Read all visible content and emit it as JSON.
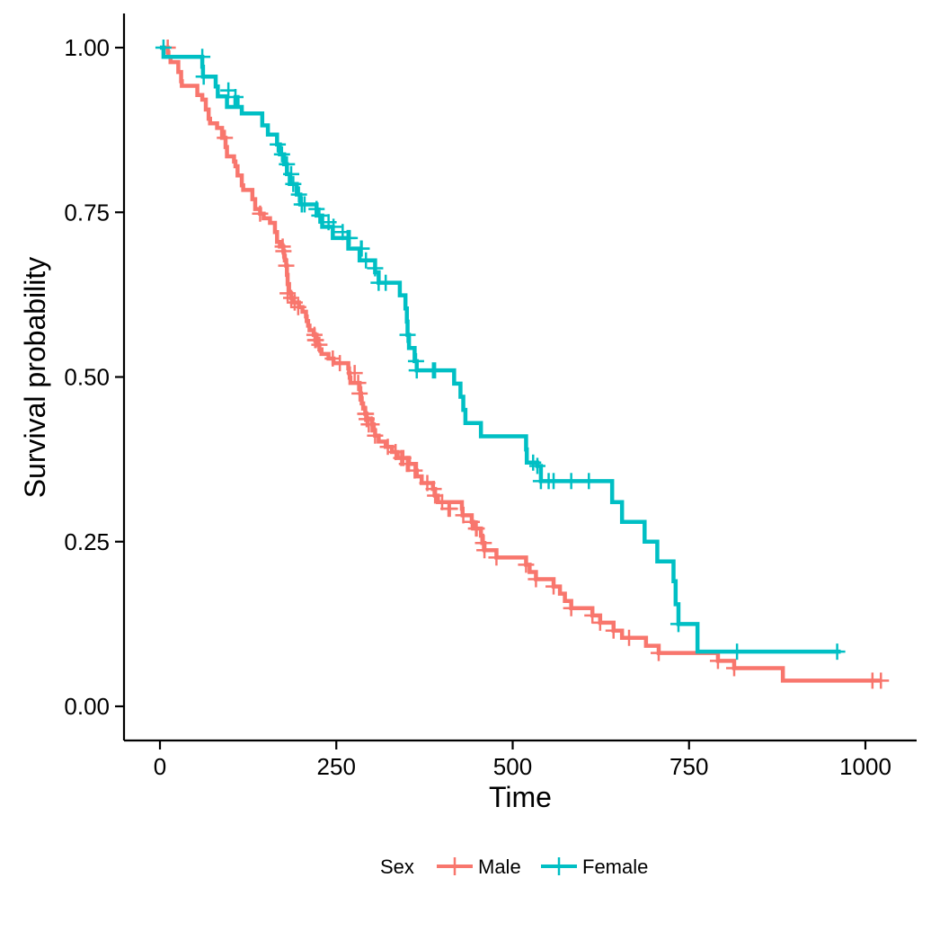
{
  "chart_data": {
    "type": "line",
    "subtype": "kaplan-meier step",
    "xlabel": "Time",
    "ylabel": "Survival probability",
    "xlim": [
      0,
      1025
    ],
    "ylim": [
      0,
      1
    ],
    "x_ticks": [
      0,
      250,
      500,
      750,
      1000
    ],
    "x_tick_labels": [
      "0",
      "250",
      "500",
      "750",
      "1000"
    ],
    "y_ticks": [
      0,
      0.25,
      0.5,
      0.75,
      1
    ],
    "y_tick_labels": [
      "0.00",
      "0.25",
      "0.50",
      "0.75",
      "1.00"
    ],
    "grid": false,
    "legend": {
      "title": "Sex",
      "position": "bottom",
      "items": [
        "Male",
        "Female"
      ]
    },
    "series": [
      {
        "name": "Male",
        "color": "#F8766D",
        "steps": [
          [
            0,
            1.0
          ],
          [
            11,
            0.993
          ],
          [
            12,
            0.986
          ],
          [
            15,
            0.978
          ],
          [
            26,
            0.963
          ],
          [
            30,
            0.949
          ],
          [
            31,
            0.942
          ],
          [
            53,
            0.928
          ],
          [
            60,
            0.921
          ],
          [
            65,
            0.906
          ],
          [
            69,
            0.892
          ],
          [
            71,
            0.885
          ],
          [
            81,
            0.878
          ],
          [
            88,
            0.863
          ],
          [
            93,
            0.849
          ],
          [
            95,
            0.835
          ],
          [
            105,
            0.827
          ],
          [
            107,
            0.82
          ],
          [
            110,
            0.806
          ],
          [
            116,
            0.791
          ],
          [
            118,
            0.784
          ],
          [
            131,
            0.77
          ],
          [
            135,
            0.755
          ],
          [
            142,
            0.748
          ],
          [
            147,
            0.741
          ],
          [
            156,
            0.734
          ],
          [
            163,
            0.72
          ],
          [
            166,
            0.705
          ],
          [
            170,
            0.698
          ],
          [
            175,
            0.691
          ],
          [
            176,
            0.684
          ],
          [
            177,
            0.677
          ],
          [
            179,
            0.669
          ],
          [
            180,
            0.655
          ],
          [
            181,
            0.641
          ],
          [
            183,
            0.627
          ],
          [
            186,
            0.62
          ],
          [
            189,
            0.613
          ],
          [
            197,
            0.606
          ],
          [
            202,
            0.599
          ],
          [
            207,
            0.592
          ],
          [
            208,
            0.585
          ],
          [
            210,
            0.578
          ],
          [
            212,
            0.571
          ],
          [
            218,
            0.564
          ],
          [
            222,
            0.556
          ],
          [
            223,
            0.549
          ],
          [
            226,
            0.542
          ],
          [
            229,
            0.535
          ],
          [
            230,
            0.535
          ],
          [
            239,
            0.528
          ],
          [
            246,
            0.521
          ],
          [
            267,
            0.513
          ],
          [
            268,
            0.506
          ],
          [
            269,
            0.499
          ],
          [
            270,
            0.491
          ],
          [
            283,
            0.483
          ],
          [
            284,
            0.475
          ],
          [
            285,
            0.468
          ],
          [
            286,
            0.46
          ],
          [
            288,
            0.452
          ],
          [
            291,
            0.444
          ],
          [
            293,
            0.436
          ],
          [
            301,
            0.428
          ],
          [
            303,
            0.419
          ],
          [
            305,
            0.411
          ],
          [
            310,
            0.402
          ],
          [
            320,
            0.394
          ],
          [
            329,
            0.386
          ],
          [
            337,
            0.377
          ],
          [
            353,
            0.368
          ],
          [
            363,
            0.358
          ],
          [
            364,
            0.349
          ],
          [
            371,
            0.339
          ],
          [
            387,
            0.33
          ],
          [
            390,
            0.32
          ],
          [
            394,
            0.31
          ],
          [
            428,
            0.3
          ],
          [
            429,
            0.29
          ],
          [
            442,
            0.28
          ],
          [
            444,
            0.27
          ],
          [
            455,
            0.259
          ],
          [
            457,
            0.248
          ],
          [
            460,
            0.237
          ],
          [
            477,
            0.226
          ],
          [
            519,
            0.215
          ],
          [
            524,
            0.204
          ],
          [
            533,
            0.193
          ],
          [
            558,
            0.182
          ],
          [
            567,
            0.171
          ],
          [
            574,
            0.16
          ],
          [
            583,
            0.149
          ],
          [
            613,
            0.138
          ],
          [
            624,
            0.127
          ],
          [
            643,
            0.115
          ],
          [
            655,
            0.104
          ],
          [
            689,
            0.092
          ],
          [
            707,
            0.081
          ],
          [
            791,
            0.069
          ],
          [
            814,
            0.058
          ],
          [
            883,
            0.039
          ],
          [
            1022,
            0.039
          ]
        ],
        "censors": [
          [
            11,
            1.0
          ],
          [
            92,
            0.863
          ],
          [
            142,
            0.748
          ],
          [
            174,
            0.698
          ],
          [
            175,
            0.691
          ],
          [
            179,
            0.669
          ],
          [
            181,
            0.627
          ],
          [
            186,
            0.62
          ],
          [
            191,
            0.613
          ],
          [
            196,
            0.606
          ],
          [
            219,
            0.564
          ],
          [
            220,
            0.556
          ],
          [
            221,
            0.556
          ],
          [
            226,
            0.549
          ],
          [
            245,
            0.528
          ],
          [
            255,
            0.521
          ],
          [
            276,
            0.506
          ],
          [
            281,
            0.491
          ],
          [
            283,
            0.475
          ],
          [
            291,
            0.444
          ],
          [
            292,
            0.444
          ],
          [
            293,
            0.436
          ],
          [
            296,
            0.428
          ],
          [
            300,
            0.428
          ],
          [
            305,
            0.411
          ],
          [
            323,
            0.394
          ],
          [
            334,
            0.386
          ],
          [
            342,
            0.377
          ],
          [
            345,
            0.377
          ],
          [
            350,
            0.368
          ],
          [
            353,
            0.368
          ],
          [
            361,
            0.358
          ],
          [
            379,
            0.339
          ],
          [
            388,
            0.33
          ],
          [
            390,
            0.32
          ],
          [
            400,
            0.31
          ],
          [
            409,
            0.3
          ],
          [
            410,
            0.3
          ],
          [
            411,
            0.3
          ],
          [
            430,
            0.29
          ],
          [
            442,
            0.28
          ],
          [
            448,
            0.27
          ],
          [
            449,
            0.27
          ],
          [
            458,
            0.248
          ],
          [
            459,
            0.248
          ],
          [
            460,
            0.237
          ],
          [
            477,
            0.226
          ],
          [
            519,
            0.215
          ],
          [
            533,
            0.193
          ],
          [
            558,
            0.182
          ],
          [
            583,
            0.149
          ],
          [
            613,
            0.138
          ],
          [
            624,
            0.127
          ],
          [
            643,
            0.115
          ],
          [
            665,
            0.104
          ],
          [
            707,
            0.081
          ],
          [
            791,
            0.069
          ],
          [
            814,
            0.058
          ],
          [
            1010,
            0.039
          ],
          [
            1022,
            0.039
          ]
        ]
      },
      {
        "name": "Female",
        "color": "#00BFC4",
        "steps": [
          [
            0,
            1.0
          ],
          [
            5,
            0.986
          ],
          [
            60,
            0.971
          ],
          [
            61,
            0.956
          ],
          [
            62,
            0.956
          ],
          [
            79,
            0.941
          ],
          [
            82,
            0.926
          ],
          [
            95,
            0.91
          ],
          [
            107,
            0.925
          ],
          [
            110,
            0.91
          ],
          [
            116,
            0.9
          ],
          [
            122,
            0.9
          ],
          [
            145,
            0.882
          ],
          [
            153,
            0.868
          ],
          [
            166,
            0.853
          ],
          [
            167,
            0.853
          ],
          [
            170,
            0.838
          ],
          [
            173,
            0.838
          ],
          [
            176,
            0.823
          ],
          [
            180,
            0.808
          ],
          [
            184,
            0.793
          ],
          [
            189,
            0.793
          ],
          [
            194,
            0.777
          ],
          [
            197,
            0.777
          ],
          [
            199,
            0.762
          ],
          [
            201,
            0.762
          ],
          [
            205,
            0.762
          ],
          [
            210,
            0.762
          ],
          [
            222,
            0.745
          ],
          [
            226,
            0.745
          ],
          [
            230,
            0.728
          ],
          [
            239,
            0.728
          ],
          [
            245,
            0.711
          ],
          [
            246,
            0.711
          ],
          [
            259,
            0.711
          ],
          [
            266,
            0.711
          ],
          [
            267,
            0.695
          ],
          [
            269,
            0.695
          ],
          [
            270,
            0.695
          ],
          [
            283,
            0.677
          ],
          [
            285,
            0.677
          ],
          [
            286,
            0.677
          ],
          [
            292,
            0.677
          ],
          [
            305,
            0.659
          ],
          [
            310,
            0.643
          ],
          [
            320,
            0.643
          ],
          [
            335,
            0.643
          ],
          [
            340,
            0.624
          ],
          [
            348,
            0.604
          ],
          [
            350,
            0.584
          ],
          [
            351,
            0.564
          ],
          [
            353,
            0.544
          ],
          [
            361,
            0.524
          ],
          [
            363,
            0.524
          ],
          [
            364,
            0.51
          ],
          [
            387,
            0.51
          ],
          [
            390,
            0.51
          ],
          [
            417,
            0.49
          ],
          [
            426,
            0.47
          ],
          [
            430,
            0.45
          ],
          [
            433,
            0.43
          ],
          [
            450,
            0.43
          ],
          [
            455,
            0.41
          ],
          [
            477,
            0.41
          ],
          [
            513,
            0.41
          ],
          [
            519,
            0.39
          ],
          [
            520,
            0.37
          ],
          [
            524,
            0.37
          ],
          [
            533,
            0.37
          ],
          [
            535,
            0.365
          ],
          [
            540,
            0.342
          ],
          [
            551,
            0.342
          ],
          [
            558,
            0.342
          ],
          [
            583,
            0.342
          ],
          [
            608,
            0.342
          ],
          [
            641,
            0.31
          ],
          [
            655,
            0.28
          ],
          [
            687,
            0.25
          ],
          [
            705,
            0.22
          ],
          [
            713,
            0.22
          ],
          [
            728,
            0.19
          ],
          [
            731,
            0.155
          ],
          [
            735,
            0.125
          ],
          [
            761,
            0.125
          ],
          [
            762,
            0.083
          ],
          [
            765,
            0.083
          ],
          [
            796,
            0.083
          ],
          [
            965,
            0.083
          ]
        ],
        "censors": [
          [
            5,
            1.0
          ],
          [
            60,
            0.986
          ],
          [
            62,
            0.956
          ],
          [
            97,
            0.935
          ],
          [
            107,
            0.925
          ],
          [
            167,
            0.853
          ],
          [
            173,
            0.838
          ],
          [
            180,
            0.823
          ],
          [
            186,
            0.808
          ],
          [
            189,
            0.793
          ],
          [
            197,
            0.777
          ],
          [
            201,
            0.762
          ],
          [
            205,
            0.762
          ],
          [
            222,
            0.755
          ],
          [
            226,
            0.745
          ],
          [
            239,
            0.735
          ],
          [
            246,
            0.728
          ],
          [
            259,
            0.72
          ],
          [
            266,
            0.711
          ],
          [
            269,
            0.711
          ],
          [
            285,
            0.695
          ],
          [
            286,
            0.695
          ],
          [
            292,
            0.677
          ],
          [
            305,
            0.665
          ],
          [
            310,
            0.643
          ],
          [
            320,
            0.643
          ],
          [
            351,
            0.564
          ],
          [
            363,
            0.524
          ],
          [
            364,
            0.51
          ],
          [
            387,
            0.51
          ],
          [
            390,
            0.51
          ],
          [
            529,
            0.37
          ],
          [
            535,
            0.365
          ],
          [
            540,
            0.342
          ],
          [
            551,
            0.342
          ],
          [
            558,
            0.342
          ],
          [
            583,
            0.342
          ],
          [
            608,
            0.342
          ],
          [
            735,
            0.125
          ],
          [
            818,
            0.083
          ],
          [
            960,
            0.083
          ]
        ]
      }
    ]
  }
}
